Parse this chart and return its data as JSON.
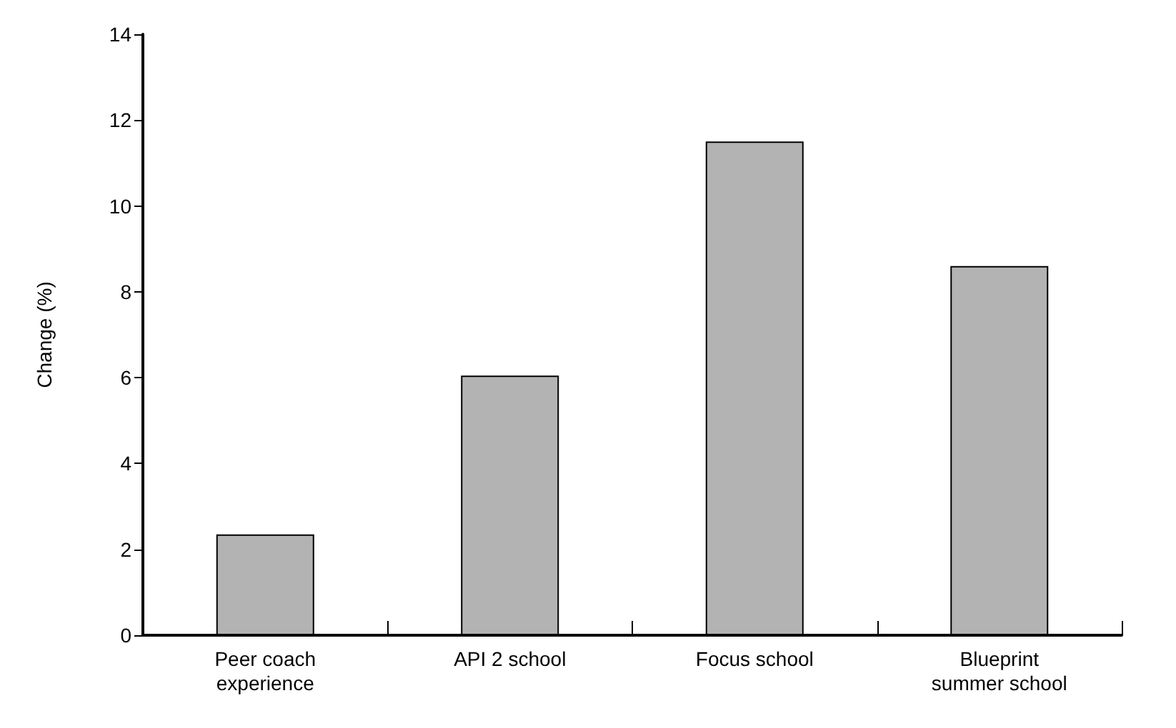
{
  "chart_data": {
    "type": "bar",
    "ylabel": "Change (%)",
    "categories": [
      "Peer coach\nexperience",
      "API 2 school",
      "Focus school",
      "Blueprint\nsummer school"
    ],
    "values": [
      2.35,
      6.05,
      11.5,
      8.6
    ],
    "color": "#b3b3b3",
    "ylim": [
      0,
      14
    ],
    "yticks": [
      0,
      2,
      4,
      6,
      8,
      10,
      12,
      14
    ],
    "grid": false
  }
}
